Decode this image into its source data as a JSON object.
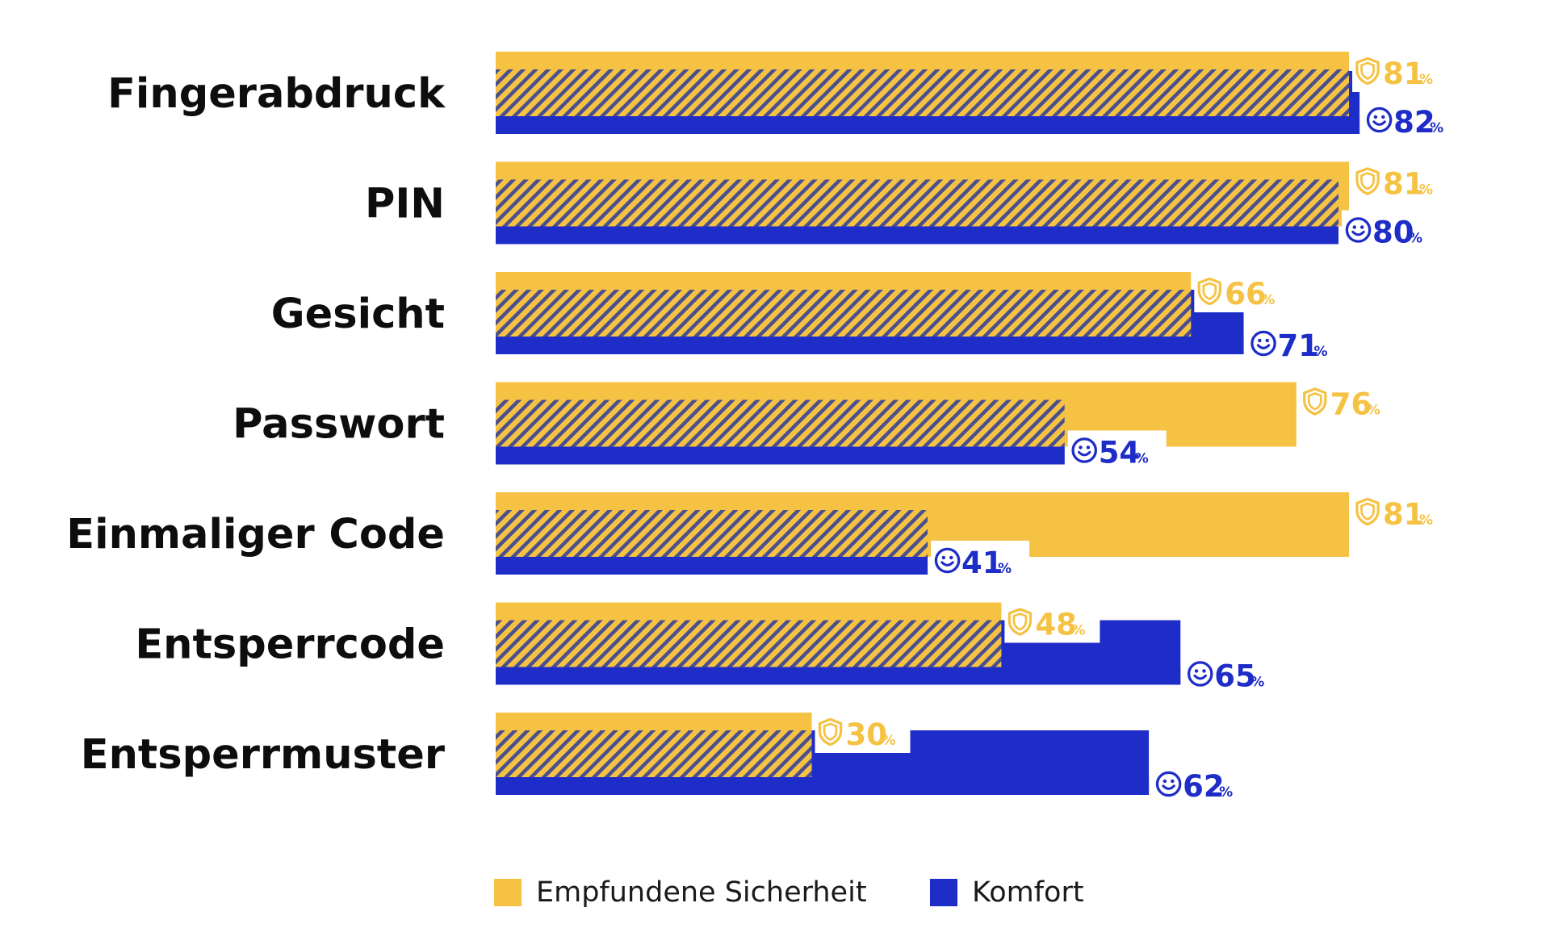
{
  "chart_data": {
    "type": "bar",
    "orientation": "horizontal",
    "categories": [
      "Fingerabdruck",
      "PIN",
      "Gesicht",
      "Passwort",
      "Einmaliger Code",
      "Entsperrcode",
      "Entsperrmuster"
    ],
    "series": [
      {
        "name": "Empfundene Sicherheit",
        "values": [
          81,
          81,
          66,
          76,
          81,
          48,
          30
        ],
        "color": "#F5C243",
        "icon": "shield-icon"
      },
      {
        "name": "Komfort",
        "values": [
          82,
          80,
          71,
          54,
          41,
          65,
          62
        ],
        "color": "#1F2DC8",
        "icon": "smiley-icon"
      }
    ],
    "value_suffix": "%",
    "overlap_pattern": "diagonal-stripes",
    "legend_position": "bottom",
    "grid": false,
    "xlim": [
      0,
      100
    ]
  },
  "legend": {
    "items": [
      {
        "label": "Empfundene Sicherheit",
        "color": "#F5C243"
      },
      {
        "label": "Komfort",
        "color": "#1F2DC8"
      }
    ]
  }
}
